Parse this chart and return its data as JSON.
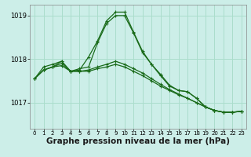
{
  "background_color": "#cceee8",
  "grid_color": "#aaddcc",
  "line_color": "#1a6b1a",
  "xlabel": "Graphe pression niveau de la mer (hPa)",
  "xlabel_fontsize": 7.5,
  "xlim": [
    -0.5,
    23.5
  ],
  "ylim": [
    1016.4,
    1019.25
  ],
  "yticks": [
    1017,
    1018,
    1019
  ],
  "xticks": [
    0,
    1,
    2,
    3,
    4,
    5,
    6,
    7,
    8,
    9,
    10,
    11,
    12,
    13,
    14,
    15,
    16,
    17,
    18,
    19,
    20,
    21,
    22,
    23
  ],
  "series": [
    [
      1017.55,
      1017.75,
      1017.82,
      1017.95,
      1017.72,
      1017.78,
      1017.82,
      1018.38,
      1018.82,
      1019.0,
      1019.0,
      1018.6,
      1018.15,
      1017.88,
      1017.62,
      1017.38,
      1017.28,
      1017.25,
      1017.1,
      1016.9,
      1016.82,
      1016.78,
      1016.78,
      1016.8
    ],
    [
      1017.55,
      1017.75,
      1017.82,
      1017.85,
      1017.72,
      1017.72,
      1017.72,
      1017.78,
      1017.82,
      1017.88,
      1017.82,
      1017.72,
      1017.62,
      1017.5,
      1017.38,
      1017.28,
      1017.18,
      1017.1,
      1017.0,
      1016.9,
      1016.82,
      1016.78,
      1016.78,
      1016.8
    ],
    [
      1017.55,
      1017.75,
      1017.82,
      1017.9,
      1017.72,
      1017.72,
      1017.75,
      1017.82,
      1017.88,
      1017.95,
      1017.88,
      1017.78,
      1017.68,
      1017.55,
      1017.42,
      1017.3,
      1017.2,
      1017.1,
      1017.0,
      1016.9,
      1016.82,
      1016.78,
      1016.78,
      1016.8
    ],
    [
      1017.55,
      1017.82,
      1017.88,
      1017.95,
      1017.72,
      1017.75,
      1018.05,
      1018.42,
      1018.88,
      1019.08,
      1019.08,
      1018.62,
      1018.18,
      1017.88,
      1017.65,
      1017.4,
      1017.28,
      1017.25,
      1017.1,
      1016.9,
      1016.82,
      1016.78,
      1016.78,
      1016.8
    ]
  ]
}
